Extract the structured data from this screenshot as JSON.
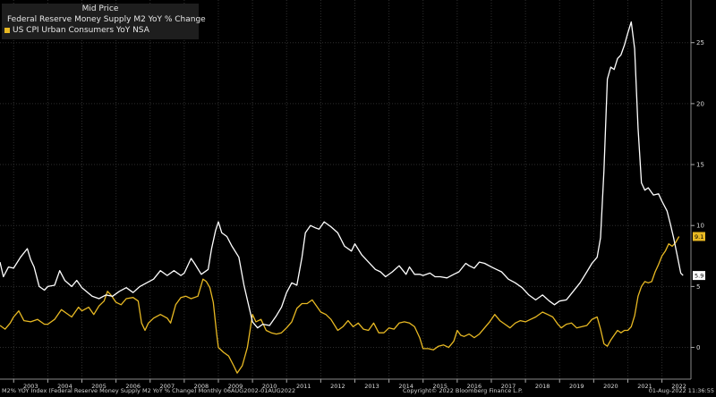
{
  "legend": {
    "title": "Mid Price",
    "items": [
      {
        "label": "Federal Reserve Money Supply M2 YoY % Change",
        "color": "#ffffff"
      },
      {
        "label": "US CPI Urban Consumers YoY NSA",
        "color": "#e8b923"
      }
    ]
  },
  "footer": {
    "left": "M2% YOY Index (Federal Reserve Money Supply M2 YoY % Change)  Monthly 06AUG2002-01AUG2022",
    "mid": "Copyright© 2022 Bloomberg Finance L.P.",
    "right": "01-Aug-2022 11:36:55"
  },
  "colors": {
    "background": "#000000",
    "grid": "#2e2e2e",
    "m2": "#ffffff",
    "cpi": "#e8b923"
  },
  "chart_data": {
    "type": "line",
    "title": "Mid Price",
    "xlim": [
      2002.6,
      2022.85
    ],
    "ylim": [
      -2.6,
      28.5
    ],
    "x_ticks": [
      "2003",
      "2004",
      "2005",
      "2006",
      "2007",
      "2008",
      "2009",
      "2010",
      "2011",
      "2012",
      "2013",
      "2014",
      "2015",
      "2016",
      "2017",
      "2018",
      "2019",
      "2020",
      "2021",
      "2022"
    ],
    "y_ticks": [
      0,
      5,
      10,
      15,
      20,
      25
    ],
    "grid": true,
    "legend_position": "top-left",
    "last_value_labels": [
      {
        "series": "US CPI Urban Consumers YoY NSA",
        "text": "9.1"
      },
      {
        "series": "Federal Reserve Money Supply M2 YoY % Change",
        "text": "5.9"
      }
    ],
    "series": [
      {
        "name": "Federal Reserve Money Supply M2 YoY % Change",
        "color": "#ffffff",
        "points": [
          [
            2002.6,
            7.0
          ],
          [
            2002.7,
            5.8
          ],
          [
            2002.85,
            6.6
          ],
          [
            2003.0,
            6.5
          ],
          [
            2003.2,
            7.4
          ],
          [
            2003.4,
            8.1
          ],
          [
            2003.5,
            7.2
          ],
          [
            2003.6,
            6.6
          ],
          [
            2003.75,
            5.0
          ],
          [
            2003.9,
            4.7
          ],
          [
            2004.0,
            5.0
          ],
          [
            2004.2,
            5.1
          ],
          [
            2004.35,
            6.3
          ],
          [
            2004.5,
            5.5
          ],
          [
            2004.7,
            5.0
          ],
          [
            2004.85,
            5.5
          ],
          [
            2005.0,
            4.9
          ],
          [
            2005.3,
            4.2
          ],
          [
            2005.5,
            4.0
          ],
          [
            2005.7,
            4.3
          ],
          [
            2005.9,
            4.2
          ],
          [
            2006.1,
            4.6
          ],
          [
            2006.3,
            4.9
          ],
          [
            2006.5,
            4.5
          ],
          [
            2006.7,
            5.0
          ],
          [
            2006.9,
            5.3
          ],
          [
            2007.1,
            5.6
          ],
          [
            2007.3,
            6.3
          ],
          [
            2007.5,
            5.9
          ],
          [
            2007.7,
            6.3
          ],
          [
            2007.9,
            5.9
          ],
          [
            2008.0,
            6.1
          ],
          [
            2008.2,
            7.3
          ],
          [
            2008.3,
            6.9
          ],
          [
            2008.5,
            6.0
          ],
          [
            2008.7,
            6.4
          ],
          [
            2008.8,
            8.1
          ],
          [
            2008.92,
            9.6
          ],
          [
            2009.0,
            10.3
          ],
          [
            2009.1,
            9.4
          ],
          [
            2009.25,
            9.1
          ],
          [
            2009.4,
            8.3
          ],
          [
            2009.6,
            7.4
          ],
          [
            2009.75,
            5.1
          ],
          [
            2009.9,
            3.3
          ],
          [
            2010.0,
            2.1
          ],
          [
            2010.15,
            1.6
          ],
          [
            2010.3,
            1.9
          ],
          [
            2010.5,
            1.8
          ],
          [
            2010.7,
            2.6
          ],
          [
            2010.85,
            3.3
          ],
          [
            2011.0,
            4.5
          ],
          [
            2011.15,
            5.3
          ],
          [
            2011.3,
            5.1
          ],
          [
            2011.45,
            7.4
          ],
          [
            2011.55,
            9.4
          ],
          [
            2011.7,
            10.0
          ],
          [
            2011.85,
            9.8
          ],
          [
            2011.95,
            9.7
          ],
          [
            2012.1,
            10.3
          ],
          [
            2012.3,
            9.9
          ],
          [
            2012.5,
            9.4
          ],
          [
            2012.7,
            8.3
          ],
          [
            2012.9,
            7.9
          ],
          [
            2013.0,
            8.5
          ],
          [
            2013.2,
            7.6
          ],
          [
            2013.4,
            7.0
          ],
          [
            2013.6,
            6.4
          ],
          [
            2013.75,
            6.2
          ],
          [
            2013.9,
            5.8
          ],
          [
            2014.1,
            6.2
          ],
          [
            2014.3,
            6.7
          ],
          [
            2014.5,
            6.0
          ],
          [
            2014.6,
            6.6
          ],
          [
            2014.75,
            6.0
          ],
          [
            2014.9,
            6.0
          ],
          [
            2015.0,
            5.9
          ],
          [
            2015.2,
            6.1
          ],
          [
            2015.35,
            5.8
          ],
          [
            2015.5,
            5.8
          ],
          [
            2015.7,
            5.7
          ],
          [
            2015.9,
            6.0
          ],
          [
            2016.05,
            6.2
          ],
          [
            2016.25,
            6.9
          ],
          [
            2016.35,
            6.7
          ],
          [
            2016.5,
            6.5
          ],
          [
            2016.65,
            7.0
          ],
          [
            2016.8,
            6.9
          ],
          [
            2017.0,
            6.6
          ],
          [
            2017.15,
            6.4
          ],
          [
            2017.3,
            6.2
          ],
          [
            2017.5,
            5.6
          ],
          [
            2017.7,
            5.3
          ],
          [
            2017.9,
            4.9
          ],
          [
            2018.1,
            4.3
          ],
          [
            2018.3,
            3.9
          ],
          [
            2018.5,
            4.3
          ],
          [
            2018.7,
            3.8
          ],
          [
            2018.85,
            3.5
          ],
          [
            2019.0,
            3.8
          ],
          [
            2019.2,
            3.9
          ],
          [
            2019.4,
            4.6
          ],
          [
            2019.6,
            5.3
          ],
          [
            2019.8,
            6.2
          ],
          [
            2019.95,
            6.9
          ],
          [
            2020.1,
            7.4
          ],
          [
            2020.2,
            9.0
          ],
          [
            2020.3,
            14.5
          ],
          [
            2020.4,
            22.0
          ],
          [
            2020.5,
            23.0
          ],
          [
            2020.6,
            22.8
          ],
          [
            2020.7,
            23.7
          ],
          [
            2020.8,
            24.0
          ],
          [
            2020.9,
            24.8
          ],
          [
            2021.0,
            25.8
          ],
          [
            2021.1,
            26.7
          ],
          [
            2021.2,
            24.5
          ],
          [
            2021.3,
            18.0
          ],
          [
            2021.4,
            13.5
          ],
          [
            2021.5,
            12.9
          ],
          [
            2021.6,
            13.1
          ],
          [
            2021.75,
            12.5
          ],
          [
            2021.9,
            12.6
          ],
          [
            2022.0,
            12.0
          ],
          [
            2022.15,
            11.2
          ],
          [
            2022.25,
            10.1
          ],
          [
            2022.35,
            8.9
          ],
          [
            2022.45,
            7.5
          ],
          [
            2022.55,
            6.1
          ],
          [
            2022.62,
            5.9
          ]
        ]
      },
      {
        "name": "US CPI Urban Consumers YoY NSA",
        "color": "#e8b923",
        "points": [
          [
            2002.6,
            1.8
          ],
          [
            2002.75,
            1.5
          ],
          [
            2002.9,
            2.0
          ],
          [
            2003.0,
            2.5
          ],
          [
            2003.15,
            3.0
          ],
          [
            2003.3,
            2.2
          ],
          [
            2003.5,
            2.1
          ],
          [
            2003.7,
            2.3
          ],
          [
            2003.9,
            1.9
          ],
          [
            2004.0,
            1.9
          ],
          [
            2004.2,
            2.3
          ],
          [
            2004.4,
            3.1
          ],
          [
            2004.55,
            2.8
          ],
          [
            2004.7,
            2.5
          ],
          [
            2004.9,
            3.3
          ],
          [
            2005.0,
            3.0
          ],
          [
            2005.2,
            3.3
          ],
          [
            2005.35,
            2.7
          ],
          [
            2005.5,
            3.4
          ],
          [
            2005.65,
            3.8
          ],
          [
            2005.75,
            4.6
          ],
          [
            2005.85,
            4.3
          ],
          [
            2006.0,
            3.7
          ],
          [
            2006.15,
            3.5
          ],
          [
            2006.3,
            4.0
          ],
          [
            2006.5,
            4.1
          ],
          [
            2006.65,
            3.8
          ],
          [
            2006.75,
            2.0
          ],
          [
            2006.85,
            1.4
          ],
          [
            2006.95,
            2.0
          ],
          [
            2007.1,
            2.4
          ],
          [
            2007.3,
            2.7
          ],
          [
            2007.5,
            2.4
          ],
          [
            2007.6,
            2.0
          ],
          [
            2007.75,
            3.5
          ],
          [
            2007.9,
            4.1
          ],
          [
            2008.05,
            4.2
          ],
          [
            2008.2,
            4.0
          ],
          [
            2008.4,
            4.2
          ],
          [
            2008.55,
            5.6
          ],
          [
            2008.65,
            5.4
          ],
          [
            2008.75,
            4.9
          ],
          [
            2008.85,
            3.7
          ],
          [
            2008.95,
            1.1
          ],
          [
            2009.0,
            0.0
          ],
          [
            2009.15,
            -0.4
          ],
          [
            2009.3,
            -0.7
          ],
          [
            2009.45,
            -1.5
          ],
          [
            2009.55,
            -2.1
          ],
          [
            2009.7,
            -1.5
          ],
          [
            2009.85,
            0.0
          ],
          [
            2010.0,
            2.7
          ],
          [
            2010.1,
            2.1
          ],
          [
            2010.25,
            2.3
          ],
          [
            2010.4,
            1.4
          ],
          [
            2010.55,
            1.2
          ],
          [
            2010.7,
            1.1
          ],
          [
            2010.85,
            1.2
          ],
          [
            2011.0,
            1.6
          ],
          [
            2011.15,
            2.1
          ],
          [
            2011.3,
            3.2
          ],
          [
            2011.45,
            3.6
          ],
          [
            2011.6,
            3.6
          ],
          [
            2011.75,
            3.9
          ],
          [
            2011.85,
            3.5
          ],
          [
            2012.0,
            2.9
          ],
          [
            2012.15,
            2.7
          ],
          [
            2012.3,
            2.3
          ],
          [
            2012.5,
            1.4
          ],
          [
            2012.65,
            1.7
          ],
          [
            2012.8,
            2.2
          ],
          [
            2012.95,
            1.7
          ],
          [
            2013.1,
            2.0
          ],
          [
            2013.25,
            1.5
          ],
          [
            2013.4,
            1.4
          ],
          [
            2013.55,
            2.0
          ],
          [
            2013.7,
            1.2
          ],
          [
            2013.85,
            1.2
          ],
          [
            2014.0,
            1.6
          ],
          [
            2014.15,
            1.5
          ],
          [
            2014.3,
            2.0
          ],
          [
            2014.45,
            2.1
          ],
          [
            2014.6,
            2.0
          ],
          [
            2014.75,
            1.7
          ],
          [
            2014.9,
            0.8
          ],
          [
            2015.0,
            -0.1
          ],
          [
            2015.15,
            -0.1
          ],
          [
            2015.3,
            -0.2
          ],
          [
            2015.45,
            0.1
          ],
          [
            2015.6,
            0.2
          ],
          [
            2015.75,
            0.0
          ],
          [
            2015.9,
            0.5
          ],
          [
            2016.0,
            1.4
          ],
          [
            2016.1,
            1.0
          ],
          [
            2016.2,
            0.9
          ],
          [
            2016.35,
            1.1
          ],
          [
            2016.5,
            0.8
          ],
          [
            2016.65,
            1.1
          ],
          [
            2016.8,
            1.6
          ],
          [
            2016.95,
            2.1
          ],
          [
            2017.1,
            2.7
          ],
          [
            2017.25,
            2.2
          ],
          [
            2017.4,
            1.9
          ],
          [
            2017.55,
            1.6
          ],
          [
            2017.7,
            2.0
          ],
          [
            2017.85,
            2.2
          ],
          [
            2018.0,
            2.1
          ],
          [
            2018.15,
            2.3
          ],
          [
            2018.3,
            2.5
          ],
          [
            2018.5,
            2.9
          ],
          [
            2018.65,
            2.7
          ],
          [
            2018.8,
            2.5
          ],
          [
            2018.95,
            1.9
          ],
          [
            2019.05,
            1.6
          ],
          [
            2019.2,
            1.9
          ],
          [
            2019.35,
            2.0
          ],
          [
            2019.5,
            1.6
          ],
          [
            2019.65,
            1.7
          ],
          [
            2019.8,
            1.8
          ],
          [
            2019.95,
            2.3
          ],
          [
            2020.1,
            2.5
          ],
          [
            2020.2,
            1.5
          ],
          [
            2020.3,
            0.3
          ],
          [
            2020.4,
            0.1
          ],
          [
            2020.5,
            0.6
          ],
          [
            2020.6,
            1.0
          ],
          [
            2020.7,
            1.4
          ],
          [
            2020.8,
            1.2
          ],
          [
            2020.9,
            1.4
          ],
          [
            2021.0,
            1.4
          ],
          [
            2021.1,
            1.7
          ],
          [
            2021.2,
            2.6
          ],
          [
            2021.3,
            4.2
          ],
          [
            2021.4,
            5.0
          ],
          [
            2021.5,
            5.4
          ],
          [
            2021.6,
            5.3
          ],
          [
            2021.7,
            5.4
          ],
          [
            2021.8,
            6.2
          ],
          [
            2021.9,
            6.8
          ],
          [
            2022.0,
            7.5
          ],
          [
            2022.1,
            7.9
          ],
          [
            2022.2,
            8.5
          ],
          [
            2022.3,
            8.3
          ],
          [
            2022.4,
            8.6
          ],
          [
            2022.5,
            9.1
          ]
        ]
      }
    ]
  }
}
